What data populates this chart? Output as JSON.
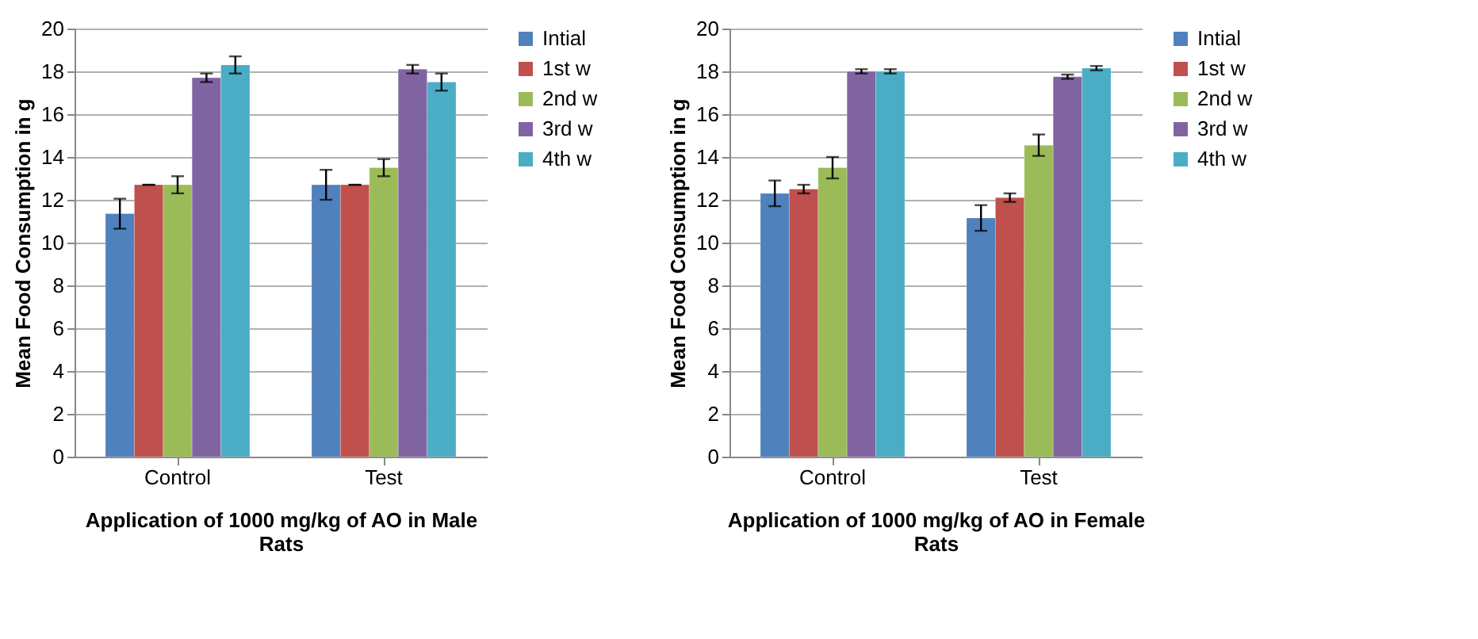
{
  "chart_data": [
    {
      "type": "bar",
      "xlabel": "Application of 1000 mg/kg of AO  in Male Rats",
      "ylabel": "Mean Food Consumption in g",
      "categories": [
        "Control",
        "Test"
      ],
      "ylim": [
        0,
        20
      ],
      "yticks": [
        0,
        2,
        4,
        6,
        8,
        10,
        12,
        14,
        16,
        18,
        20
      ],
      "grid": "y",
      "legend": "right",
      "series": [
        {
          "name": "Intial",
          "color": "#4f81bd",
          "values": [
            11.35,
            12.7
          ],
          "errors": [
            0.7,
            0.7
          ]
        },
        {
          "name": "1st w",
          "color": "#c0504d",
          "values": [
            12.7,
            12.7
          ],
          "errors": [
            0,
            0
          ]
        },
        {
          "name": "2nd  w",
          "color": "#9bbb59",
          "values": [
            12.7,
            13.5
          ],
          "errors": [
            0.4,
            0.4
          ]
        },
        {
          "name": "3rd  w",
          "color": "#8064a2",
          "values": [
            17.7,
            18.1
          ],
          "errors": [
            0.2,
            0.2
          ]
        },
        {
          "name": "4th w",
          "color": "#4bacc6",
          "values": [
            18.3,
            17.5
          ],
          "errors": [
            0.4,
            0.4
          ]
        }
      ]
    },
    {
      "type": "bar",
      "xlabel": "Application of 1000 mg/kg of AO in Female Rats",
      "ylabel": "Mean Food Consumption in g",
      "categories": [
        "Control",
        "Test"
      ],
      "ylim": [
        0,
        20
      ],
      "yticks": [
        0,
        2,
        4,
        6,
        8,
        10,
        12,
        14,
        16,
        18,
        20
      ],
      "grid": "y",
      "legend": "right",
      "series": [
        {
          "name": "Intial",
          "color": "#4f81bd",
          "values": [
            12.3,
            11.15
          ],
          "errors": [
            0.6,
            0.6
          ]
        },
        {
          "name": "1st w",
          "color": "#c0504d",
          "values": [
            12.5,
            12.1
          ],
          "errors": [
            0.2,
            0.2
          ]
        },
        {
          "name": "2nd  w",
          "color": "#9bbb59",
          "values": [
            13.5,
            14.55
          ],
          "errors": [
            0.5,
            0.5
          ]
        },
        {
          "name": "3rd  w",
          "color": "#8064a2",
          "values": [
            18.0,
            17.75
          ],
          "errors": [
            0.1,
            0.1
          ]
        },
        {
          "name": "4th w",
          "color": "#4bacc6",
          "values": [
            18.0,
            18.15
          ],
          "errors": [
            0.1,
            0.1
          ]
        }
      ]
    }
  ]
}
